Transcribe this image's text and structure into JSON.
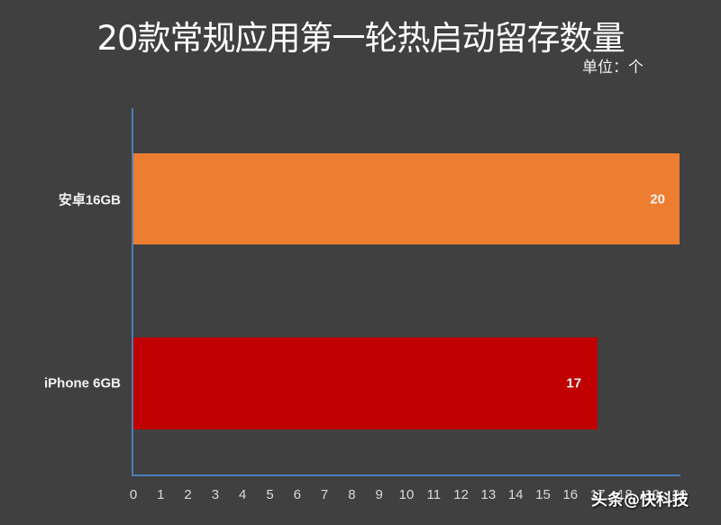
{
  "title": "20款常规应用第一轮热启动留存数量",
  "unit_label": "单位：个",
  "watermark": "头条@快科技",
  "colors": {
    "background": "#404040",
    "axis": "#4a7ebb",
    "android": "#ed7d31",
    "iphone": "#c00000"
  },
  "chart_data": {
    "type": "bar",
    "orientation": "horizontal",
    "title": "20款常规应用第一轮热启动留存数量",
    "subtitle": "单位：个",
    "categories": [
      "安卓16GB",
      "iPhone 6GB"
    ],
    "values": [
      20,
      17
    ],
    "bar_colors": [
      "#ed7d31",
      "#c00000"
    ],
    "data_labels": [
      "20",
      "17"
    ],
    "xlabel": "",
    "ylabel": "",
    "xlim": [
      0,
      20
    ],
    "x_ticks": [
      "0",
      "1",
      "2",
      "3",
      "4",
      "5",
      "6",
      "7",
      "8",
      "9",
      "10",
      "11",
      "12",
      "13",
      "14",
      "15",
      "16",
      "17",
      "18",
      "19",
      "20"
    ],
    "grid": false,
    "legend": null
  }
}
